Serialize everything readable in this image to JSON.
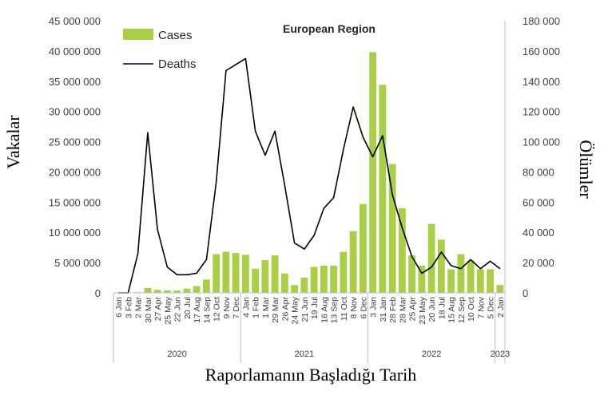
{
  "chart_data": {
    "type": "bar",
    "title": "European Region",
    "xlabel": "Raporlamanın Başladığı Tarih",
    "ylabel": "Vakalar",
    "y2label": "Ölümler",
    "ylim": [
      0,
      45000000
    ],
    "y2lim": [
      0,
      180000
    ],
    "yticks": [
      "0",
      "5 000 000",
      "10 000 000",
      "15 000 000",
      "20 000 000",
      "25 000 000",
      "30 000 000",
      "35 000 000",
      "40 000 000",
      "45 000 000"
    ],
    "y2ticks": [
      "0",
      "20 000",
      "40 000",
      "60 000",
      "80 000",
      "100 000",
      "120 000",
      "140 000",
      "160 000",
      "180 000"
    ],
    "categories": [
      "6 Jan",
      "3 Feb",
      "2 Mar",
      "30 Mar",
      "27 Apr",
      "25 May",
      "22 Jun",
      "20 Jul",
      "17 Aug",
      "14 Sep",
      "12 Oct",
      "9 Nov",
      "7 Dec",
      "4 Jan",
      "1 Feb",
      "1 Mar",
      "29 Mar",
      "26 Apr",
      "24 May",
      "21 Jun",
      "19 Jul",
      "16 Aug",
      "13 Sep",
      "11 Oct",
      "8 Nov",
      "6 Dec",
      "3 Jan",
      "31 Jan",
      "28 Feb",
      "28 Mar",
      "25 Apr",
      "23 May",
      "20 Jun",
      "18 Jul",
      "15 Aug",
      "12 Sep",
      "10 Oct",
      "7 Nov",
      "5 Dec",
      "2 Jan"
    ],
    "years": [
      {
        "label": "2020",
        "start": 0,
        "end": 12
      },
      {
        "label": "2021",
        "start": 13,
        "end": 25
      },
      {
        "label": "2022",
        "start": 26,
        "end": 38
      },
      {
        "label": "2023",
        "start": 39,
        "end": 39
      }
    ],
    "legend_position": "top-left",
    "series": [
      {
        "name": "Cases",
        "type": "bar",
        "axis": "left",
        "color": "#a9cf46",
        "values": [
          0,
          0,
          100000,
          800000,
          500000,
          400000,
          400000,
          700000,
          1100000,
          2200000,
          6400000,
          6800000,
          6600000,
          6300000,
          4000000,
          5400000,
          6200000,
          3200000,
          1300000,
          2500000,
          4300000,
          4500000,
          4500000,
          6800000,
          10200000,
          14700000,
          39800000,
          34400000,
          21300000,
          14000000,
          6200000,
          4500000,
          11400000,
          8800000,
          3900000,
          6400000,
          5300000,
          3900000,
          3900000,
          1300000
        ]
      },
      {
        "name": "Deaths",
        "type": "line",
        "axis": "right",
        "color": "#000000",
        "values": [
          0,
          0,
          26000,
          106000,
          42000,
          17000,
          12000,
          12000,
          13000,
          22000,
          73000,
          147000,
          151000,
          155000,
          107000,
          91000,
          107000,
          71000,
          33000,
          29000,
          38000,
          56000,
          63000,
          95000,
          123000,
          103000,
          90000,
          104000,
          65000,
          43000,
          24000,
          13000,
          17000,
          27000,
          18000,
          16000,
          22000,
          16000,
          21000,
          16000
        ]
      }
    ]
  }
}
